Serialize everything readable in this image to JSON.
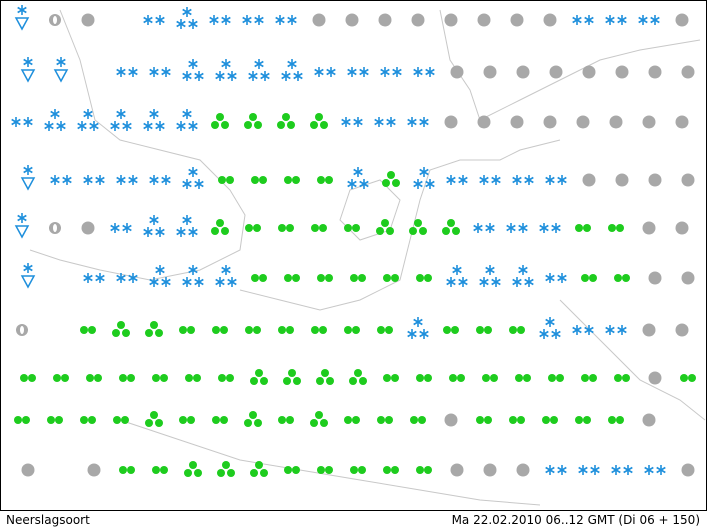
{
  "footer": {
    "product": "Neerslagsoort",
    "valid_time": "Ma 22.02.2010 06..12 GMT (Di 06 + 150)"
  }
}
